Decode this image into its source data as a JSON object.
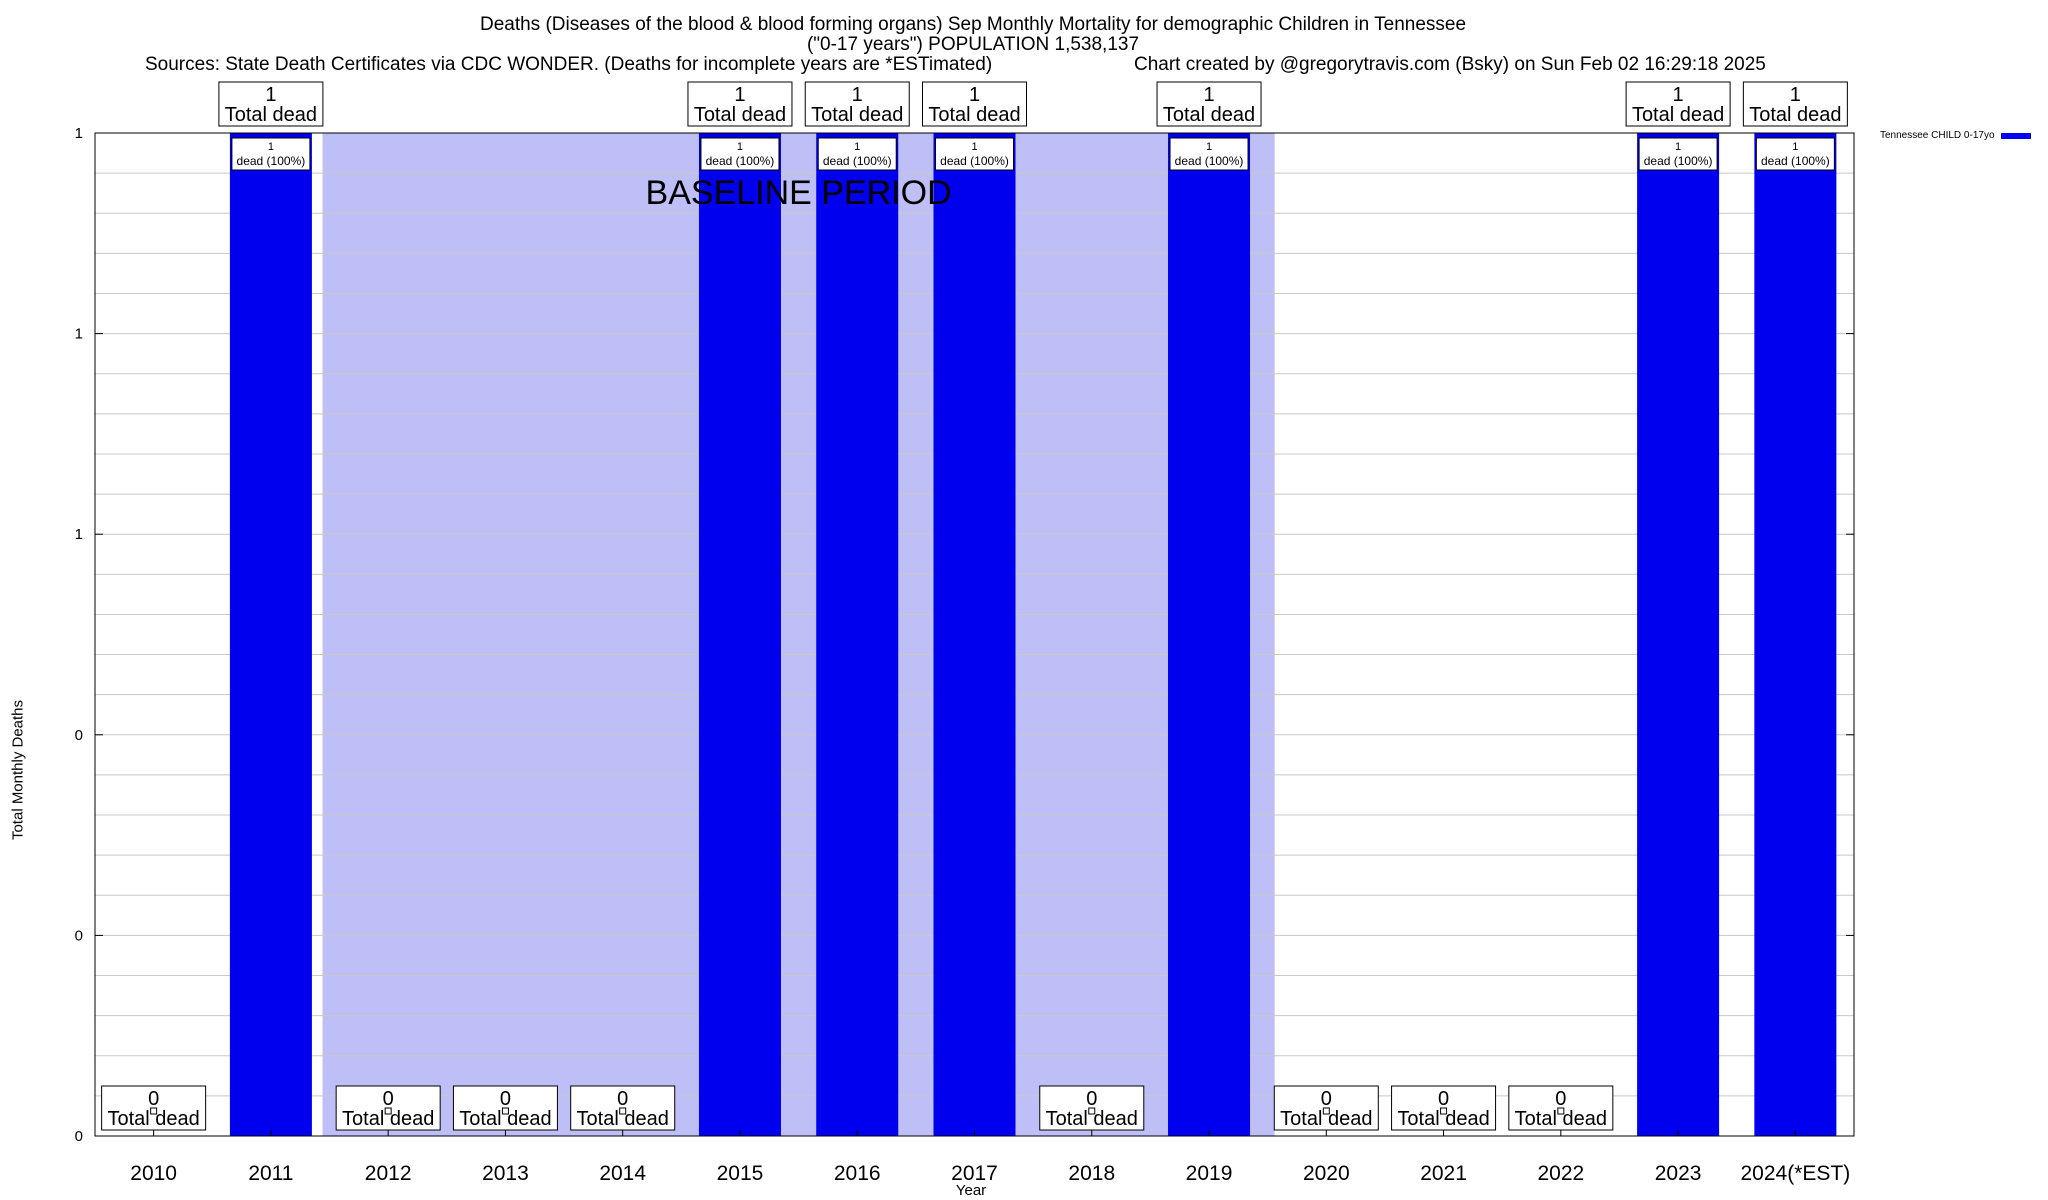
{
  "title_line1": "Deaths (Diseases of the blood & blood forming organs) Sep Monthly Mortality for demographic Children in Tennessee",
  "title_line2": "(\"0-17 years\") POPULATION 1,538,137",
  "sources": "Sources: State Death Certificates via CDC WONDER. (Deaths for incomplete years are *ESTimated)",
  "credit": "Chart created by @gregorytravis.com (Bsky) on Sun Feb 02 16:29:18 2025",
  "colors": {
    "bar": "#0000ee",
    "baseline_shade": "#bfbff7",
    "grid": "#c8c8c8"
  },
  "chart_data": {
    "type": "bar",
    "categories": [
      "2010",
      "2011",
      "2012",
      "2013",
      "2014",
      "2015",
      "2016",
      "2017",
      "2018",
      "2019",
      "2020",
      "2021",
      "2022",
      "2023",
      "2024(*EST)"
    ],
    "series": [
      {
        "name": "Tennessee CHILD 0-17yo",
        "values": [
          0,
          1,
          0,
          0,
          0,
          1,
          1,
          1,
          0,
          1,
          0,
          0,
          0,
          1,
          1
        ]
      }
    ],
    "xlabel": "Year",
    "ylabel": "Total Monthly Deaths",
    "ylim": [
      0,
      1
    ],
    "yticks": [
      0,
      0.2,
      0.4,
      0.6,
      0.8,
      1
    ],
    "ytick_labels": [
      "0",
      "0",
      "0",
      "1",
      "1",
      "1"
    ],
    "top_labels": [
      {
        "count": "0",
        "text": "Total dead"
      },
      {
        "count": "1",
        "text": "Total dead"
      },
      {
        "count": "0",
        "text": "Total dead"
      },
      {
        "count": "0",
        "text": "Total dead"
      },
      {
        "count": "0",
        "text": "Total dead"
      },
      {
        "count": "1",
        "text": "Total dead"
      },
      {
        "count": "1",
        "text": "Total dead"
      },
      {
        "count": "1",
        "text": "Total dead"
      },
      {
        "count": "0",
        "text": "Total dead"
      },
      {
        "count": "1",
        "text": "Total dead"
      },
      {
        "count": "0",
        "text": "Total dead"
      },
      {
        "count": "0",
        "text": "Total dead"
      },
      {
        "count": "0",
        "text": "Total dead"
      },
      {
        "count": "1",
        "text": "Total dead"
      },
      {
        "count": "1",
        "text": "Total dead"
      }
    ],
    "inner_labels": {
      "count": "1",
      "text": "dead (100%)"
    },
    "baseline_period": {
      "label": "BASELINE PERIOD",
      "from": "2012",
      "to": "2019"
    },
    "legend": {
      "label": "Tennessee CHILD 0-17yo",
      "position": "top-right"
    },
    "grid": true
  }
}
